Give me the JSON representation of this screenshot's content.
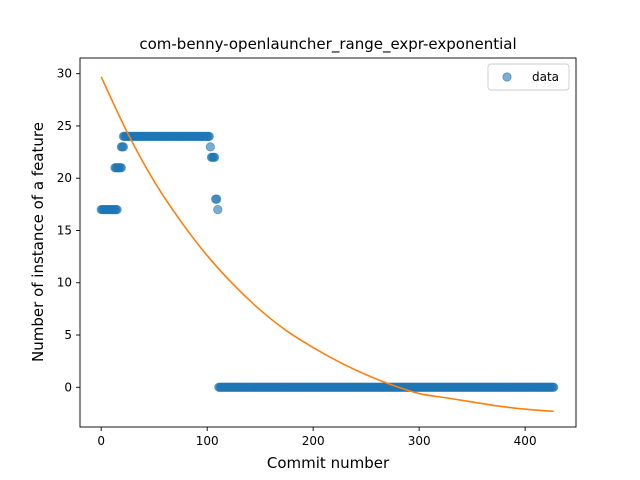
{
  "chart_data": {
    "type": "scatter",
    "title": "com-benny-openlauncher_range_expr-exponential",
    "xlabel": "Commit number",
    "ylabel": "Number of instance of a feature",
    "xlim": [
      -20,
      448
    ],
    "ylim": [
      -3.8,
      31.5
    ],
    "xticks": [
      0,
      100,
      200,
      300,
      400
    ],
    "yticks": [
      0,
      5,
      10,
      15,
      20,
      25,
      30
    ],
    "legend": {
      "position": "top-right",
      "entries": [
        "data"
      ]
    },
    "colors": {
      "data": "#1f77b4",
      "fit": "#ff7f0e"
    },
    "series": [
      {
        "name": "data",
        "kind": "scatter",
        "segments": [
          {
            "x_start": 0,
            "x_end": 15,
            "y": 17
          },
          {
            "x_start": 13,
            "x_end": 19,
            "y": 21
          },
          {
            "x_start": 19,
            "x_end": 21,
            "y": 23
          },
          {
            "x_start": 21,
            "x_end": 102,
            "y": 24
          },
          {
            "x_start": 103,
            "x_end": 103,
            "y": 23
          },
          {
            "x_start": 104,
            "x_end": 107,
            "y": 22
          },
          {
            "x_start": 108,
            "x_end": 109,
            "y": 18
          },
          {
            "x_start": 110,
            "x_end": 110,
            "y": 17
          },
          {
            "x_start": 111,
            "x_end": 427,
            "y": 0
          }
        ]
      },
      {
        "kind": "line",
        "x": [
          0,
          25,
          50,
          75,
          100,
          125,
          150,
          175,
          200,
          225,
          250,
          275,
          300,
          325,
          350,
          375,
          400,
          427
        ],
        "y": [
          29.7,
          24.3,
          19.7,
          15.9,
          12.6,
          9.8,
          7.4,
          5.4,
          3.8,
          2.4,
          1.2,
          0.2,
          -0.6,
          -1.0,
          -1.4,
          -1.8,
          -2.1,
          -2.3
        ]
      }
    ]
  }
}
